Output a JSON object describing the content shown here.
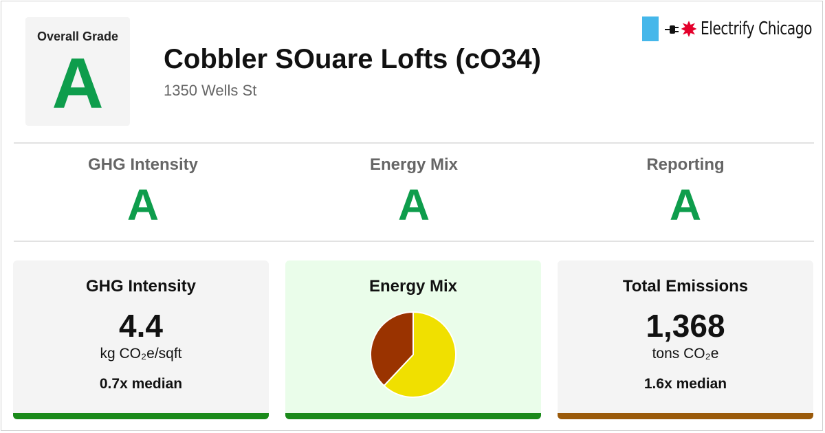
{
  "overall": {
    "label": "Overall Grade",
    "grade": "A"
  },
  "building": {
    "title": "Cobbler SOuare Lofts (cO34)",
    "address": "1350 Wells St"
  },
  "brand": {
    "name": "Electrify Chicago",
    "flag_color": "#45b7ea",
    "star_color": "#e4002b"
  },
  "grades": [
    {
      "label": "GHG Intensity",
      "grade": "A"
    },
    {
      "label": "Energy Mix",
      "grade": "A"
    },
    {
      "label": "Reporting",
      "grade": "A"
    }
  ],
  "cards": {
    "ghg": {
      "title": "GHG Intensity",
      "value": "4.4",
      "unit": "kg CO₂e/sqft",
      "median": "0.7x median",
      "bar_color": "#1a8a1a"
    },
    "mix": {
      "title": "Energy Mix",
      "bar_color": "#1a8a1a",
      "background": "#eafdea"
    },
    "emissions": {
      "title": "Total Emissions",
      "value": "1,368",
      "unit": "tons CO₂e",
      "median": "1.6x median",
      "bar_color": "#9a5a0a"
    }
  },
  "chart_data": {
    "type": "pie",
    "slices": [
      {
        "fraction": 0.62,
        "color": "#f0e000"
      },
      {
        "fraction": 0.38,
        "color": "#9a3300"
      }
    ]
  },
  "colors": {
    "grade_green": "#0e9d4c"
  }
}
